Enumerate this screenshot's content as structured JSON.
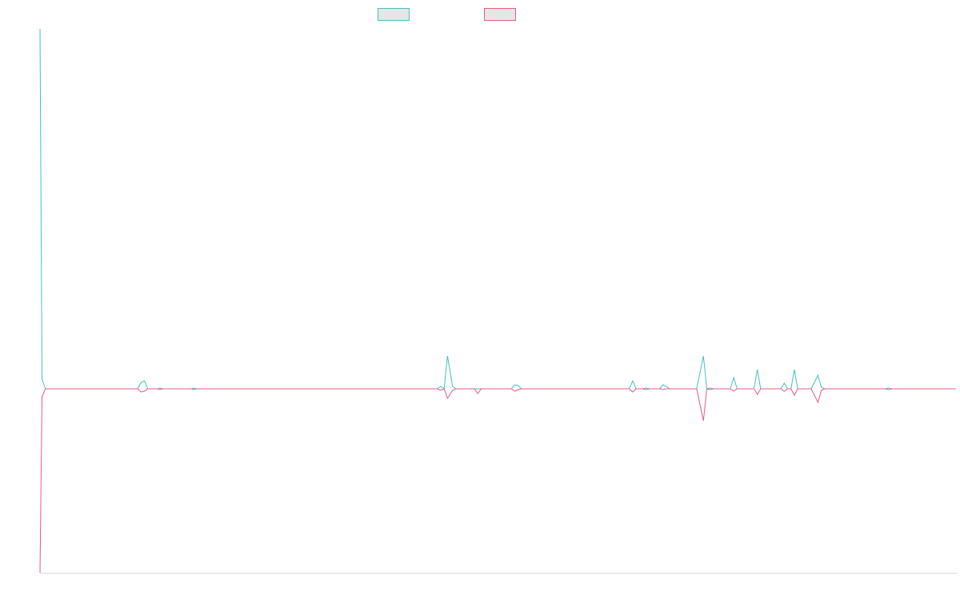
{
  "chart_data": {
    "type": "line",
    "title": "",
    "xlabel": "",
    "ylabel": "",
    "grid": false,
    "legend_position": "top-center",
    "x_range": [
      0,
      272
    ],
    "ylim": [
      -230,
      450
    ],
    "colors": {
      "series_a": "#45C0BE",
      "series_b": "#F0587F",
      "legend_fill": "#e6e6e6",
      "axis": "#d9d9d9"
    },
    "series": [
      {
        "key": "series_a",
        "points": [
          [
            0,
            450
          ],
          [
            0.6,
            12
          ],
          [
            1.6,
            0
          ],
          [
            29,
            0
          ],
          [
            30,
            8
          ],
          [
            31,
            10
          ],
          [
            32,
            0
          ],
          [
            35,
            0
          ],
          [
            35.5,
            1
          ],
          [
            36.5,
            0
          ],
          [
            45,
            0
          ],
          [
            45.5,
            1
          ],
          [
            46.5,
            0
          ],
          [
            118,
            0
          ],
          [
            119,
            3
          ],
          [
            120,
            0
          ],
          [
            121,
            41
          ],
          [
            122.5,
            3
          ],
          [
            123.5,
            0
          ],
          [
            140,
            0
          ],
          [
            141,
            5
          ],
          [
            142,
            4
          ],
          [
            143,
            0
          ],
          [
            175,
            0
          ],
          [
            176,
            10
          ],
          [
            177,
            0
          ],
          [
            179,
            0
          ],
          [
            180,
            1
          ],
          [
            181,
            0
          ],
          [
            184,
            0
          ],
          [
            185,
            5
          ],
          [
            186,
            3
          ],
          [
            187,
            0
          ],
          [
            195,
            0
          ],
          [
            197,
            41
          ],
          [
            198,
            0
          ],
          [
            199,
            1
          ],
          [
            200,
            0
          ],
          [
            205,
            0
          ],
          [
            206,
            14
          ],
          [
            207,
            0
          ],
          [
            212,
            0
          ],
          [
            213,
            24
          ],
          [
            214,
            0
          ],
          [
            220,
            0
          ],
          [
            221,
            7
          ],
          [
            222,
            0
          ],
          [
            223,
            0
          ],
          [
            224,
            24
          ],
          [
            225,
            0
          ],
          [
            229,
            0
          ],
          [
            231,
            17
          ],
          [
            232,
            2
          ],
          [
            233,
            0
          ],
          [
            251,
            0
          ],
          [
            252,
            1
          ],
          [
            253,
            0
          ],
          [
            272,
            0
          ]
        ]
      },
      {
        "key": "series_b",
        "points": [
          [
            0,
            -230
          ],
          [
            0.6,
            -10
          ],
          [
            1.6,
            0
          ],
          [
            29,
            0
          ],
          [
            30,
            -4
          ],
          [
            31,
            -3
          ],
          [
            32,
            0
          ],
          [
            35,
            0
          ],
          [
            35.5,
            -1
          ],
          [
            36.5,
            0
          ],
          [
            45,
            0
          ],
          [
            45.5,
            -1
          ],
          [
            46.5,
            0
          ],
          [
            118,
            0
          ],
          [
            119,
            -2
          ],
          [
            120,
            0
          ],
          [
            121,
            -12
          ],
          [
            122.5,
            -2
          ],
          [
            123.5,
            0
          ],
          [
            129,
            0
          ],
          [
            130,
            -6
          ],
          [
            131,
            0
          ],
          [
            140,
            0
          ],
          [
            141,
            -3
          ],
          [
            142,
            -1
          ],
          [
            143,
            0
          ],
          [
            175,
            0
          ],
          [
            176,
            -4
          ],
          [
            177,
            0
          ],
          [
            179,
            0
          ],
          [
            180,
            -1
          ],
          [
            181,
            0
          ],
          [
            184,
            0
          ],
          [
            185,
            -1
          ],
          [
            186,
            0
          ],
          [
            195,
            0
          ],
          [
            197,
            -40
          ],
          [
            198,
            0
          ],
          [
            199,
            -1
          ],
          [
            200,
            0
          ],
          [
            205,
            0
          ],
          [
            206,
            -3
          ],
          [
            207,
            0
          ],
          [
            212,
            0
          ],
          [
            213,
            -7
          ],
          [
            214,
            0
          ],
          [
            220,
            0
          ],
          [
            221,
            -3
          ],
          [
            222,
            0
          ],
          [
            223,
            0
          ],
          [
            224,
            -8
          ],
          [
            225,
            0
          ],
          [
            229,
            0
          ],
          [
            231,
            -17
          ],
          [
            232,
            -2
          ],
          [
            233,
            0
          ],
          [
            251,
            0
          ],
          [
            252,
            -1
          ],
          [
            253,
            0
          ],
          [
            272,
            0
          ]
        ]
      }
    ]
  }
}
